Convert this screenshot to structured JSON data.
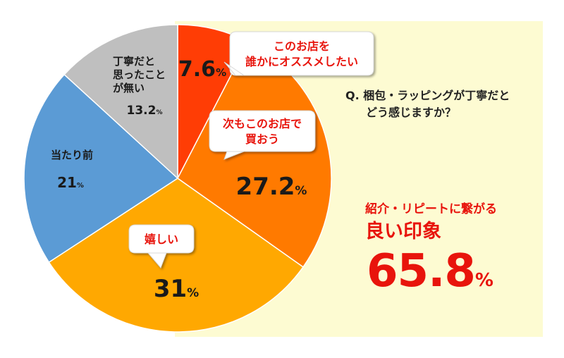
{
  "question": {
    "line1": "Q. 梱包・ラッピングが丁寧だと",
    "line2": "どう感じますか？"
  },
  "highlight": {
    "line1": "紹介・リピートに繋がる",
    "line2": "良い印象",
    "value": "65.8",
    "unit": "%"
  },
  "colors": {
    "panel": "#fdfbd2",
    "slice_red": "#ff3d05",
    "slice_orange": "#ff7a00",
    "slice_amber": "#ffa801",
    "slice_blue": "#5b9bd5",
    "slice_gray": "#bfbfbf",
    "accent": "#e8140c"
  },
  "chart_data": {
    "type": "pie",
    "title": "",
    "slices": [
      {
        "label": "このお店を誰かにオススメしたい",
        "value": 7.6,
        "value_text": "7.6",
        "unit": "%",
        "color": "#ff3d05",
        "callout": [
          "このお店を",
          "誰かにオススメしたい"
        ]
      },
      {
        "label": "次もこのお店で買おう",
        "value": 27.2,
        "value_text": "27.2",
        "unit": "%",
        "color": "#ff7a00",
        "callout": [
          "次もこのお店で",
          "買おう"
        ]
      },
      {
        "label": "嬉しい",
        "value": 31,
        "value_text": "31",
        "unit": "%",
        "color": "#ffa801",
        "callout": [
          "嬉しい"
        ]
      },
      {
        "label": "当たり前",
        "value": 21,
        "value_text": "21",
        "unit": "%",
        "color": "#5b9bd5",
        "inline_label": [
          "当たり前"
        ]
      },
      {
        "label": "丁寧だと思ったことが無い",
        "value": 13.2,
        "value_text": "13.2",
        "unit": "%",
        "color": "#bfbfbf",
        "inline_label": [
          "丁寧だと",
          "思ったこと",
          "が無い"
        ]
      }
    ]
  }
}
